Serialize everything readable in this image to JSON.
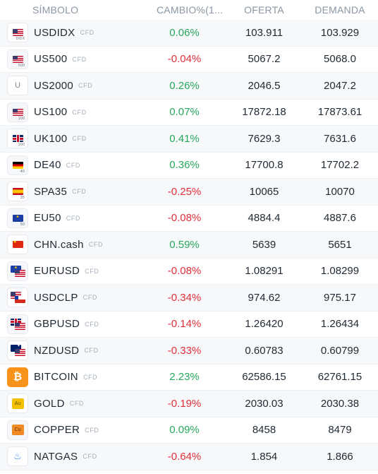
{
  "header": {
    "symbol": "SÍMBOLO",
    "change": "CAMBIO%(1...",
    "bid": "OFERTA",
    "ask": "DEMANDA"
  },
  "rows": [
    {
      "symbol": "USDIDX",
      "tag": "CFD",
      "icon": "us-flag-icon",
      "icon_sub": "DIDX",
      "change": "0.06%",
      "bid": "103.911",
      "ask": "103.929"
    },
    {
      "symbol": "US500",
      "tag": "CFD",
      "icon": "us-flag-icon",
      "icon_sub": "500",
      "change": "-0.04%",
      "bid": "5067.2",
      "ask": "5068.0"
    },
    {
      "symbol": "US2000",
      "tag": "CFD",
      "icon": "letter-u-icon",
      "icon_letter": "U",
      "change": "0.26%",
      "bid": "2046.5",
      "ask": "2047.2"
    },
    {
      "symbol": "US100",
      "tag": "CFD",
      "icon": "us-flag-icon",
      "icon_sub": "100",
      "change": "0.07%",
      "bid": "17872.18",
      "ask": "17873.61"
    },
    {
      "symbol": "UK100",
      "tag": "CFD",
      "icon": "uk-flag-icon",
      "icon_sub": "100",
      "change": "0.41%",
      "bid": "7629.3",
      "ask": "7631.6"
    },
    {
      "symbol": "DE40",
      "tag": "CFD",
      "icon": "germany-flag-icon",
      "icon_sub": "40",
      "change": "0.36%",
      "bid": "17700.8",
      "ask": "17702.2"
    },
    {
      "symbol": "SPA35",
      "tag": "CFD",
      "icon": "spain-flag-icon",
      "icon_sub": "35",
      "change": "-0.25%",
      "bid": "10065",
      "ask": "10070"
    },
    {
      "symbol": "EU50",
      "tag": "CFD",
      "icon": "eu-flag-icon",
      "icon_sub": "50",
      "change": "-0.08%",
      "bid": "4884.4",
      "ask": "4887.6"
    },
    {
      "symbol": "CHN.cash",
      "tag": "CFD",
      "icon": "china-flag-icon",
      "change": "0.59%",
      "bid": "5639",
      "ask": "5651"
    },
    {
      "symbol": "EURUSD",
      "tag": "CFD",
      "icon": "eur-usd-flags-icon",
      "change": "-0.08%",
      "bid": "1.08291",
      "ask": "1.08299"
    },
    {
      "symbol": "USDCLP",
      "tag": "CFD",
      "icon": "usd-clp-flags-icon",
      "change": "-0.34%",
      "bid": "974.62",
      "ask": "975.17"
    },
    {
      "symbol": "GBPUSD",
      "tag": "CFD",
      "icon": "gbp-usd-flags-icon",
      "change": "-0.14%",
      "bid": "1.26420",
      "ask": "1.26434"
    },
    {
      "symbol": "NZDUSD",
      "tag": "CFD",
      "icon": "nzd-usd-flags-icon",
      "change": "-0.33%",
      "bid": "0.60783",
      "ask": "0.60799"
    },
    {
      "symbol": "BITCOIN",
      "tag": "CFD",
      "icon": "bitcoin-icon",
      "icon_letter": "₿",
      "change": "2.23%",
      "bid": "62586.15",
      "ask": "62761.15"
    },
    {
      "symbol": "GOLD",
      "tag": "CFD",
      "icon": "gold-icon",
      "icon_letter": "Au",
      "change": "-0.19%",
      "bid": "2030.03",
      "ask": "2030.38"
    },
    {
      "symbol": "COPPER",
      "tag": "CFD",
      "icon": "copper-icon",
      "icon_letter": "Cu",
      "change": "0.09%",
      "bid": "8458",
      "ask": "8479"
    },
    {
      "symbol": "NATGAS",
      "tag": "CFD",
      "icon": "flame-icon",
      "change": "-0.64%",
      "bid": "1.854",
      "ask": "1.866"
    }
  ],
  "colors": {
    "positive": "#27a85c",
    "negative": "#e0303a",
    "header": "#8a96a3"
  }
}
